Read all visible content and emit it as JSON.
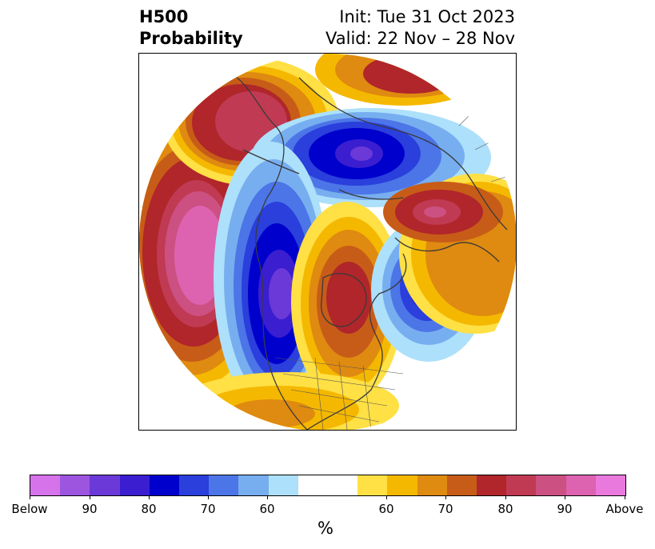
{
  "title": {
    "left_line1": "H500",
    "left_line2": "Probability",
    "right_line1": "Init: Tue 31 Oct 2023",
    "right_line2": "Valid: 22 Nov – 28 Nov"
  },
  "colorbar": {
    "unit": "%",
    "tick_labels": [
      "Below",
      "90",
      "80",
      "70",
      "60",
      "60",
      "70",
      "80",
      "90",
      "Above"
    ],
    "colors": [
      "#d672ea",
      "#9d55e0",
      "#6a39d8",
      "#3a1ed0",
      "#0000cd",
      "#2a3fdc",
      "#4c75e7",
      "#77aef0",
      "#ade0fa",
      "#ffffff",
      "#ffe045",
      "#f5b800",
      "#df8a10",
      "#c75c18",
      "#b0262a",
      "#c03a53",
      "#cc5082",
      "#dd62b0",
      "#ea79dd"
    ]
  },
  "map": {
    "projection": "north-polar-stereographic",
    "anomaly_centers": [
      {
        "region": "North Pacific",
        "sign": "above",
        "level": "Above"
      },
      {
        "region": "Alaska / Bering",
        "sign": "above",
        "level": "90"
      },
      {
        "region": "Arctic / Siberia",
        "sign": "below",
        "level": "90"
      },
      {
        "region": "Western North America",
        "sign": "below",
        "level": "90"
      },
      {
        "region": "Eastern Canada",
        "sign": "above",
        "level": "80"
      },
      {
        "region": "North Atlantic",
        "sign": "below",
        "level": "90"
      },
      {
        "region": "Northern Europe / Russia",
        "sign": "above",
        "level": "90"
      }
    ]
  }
}
